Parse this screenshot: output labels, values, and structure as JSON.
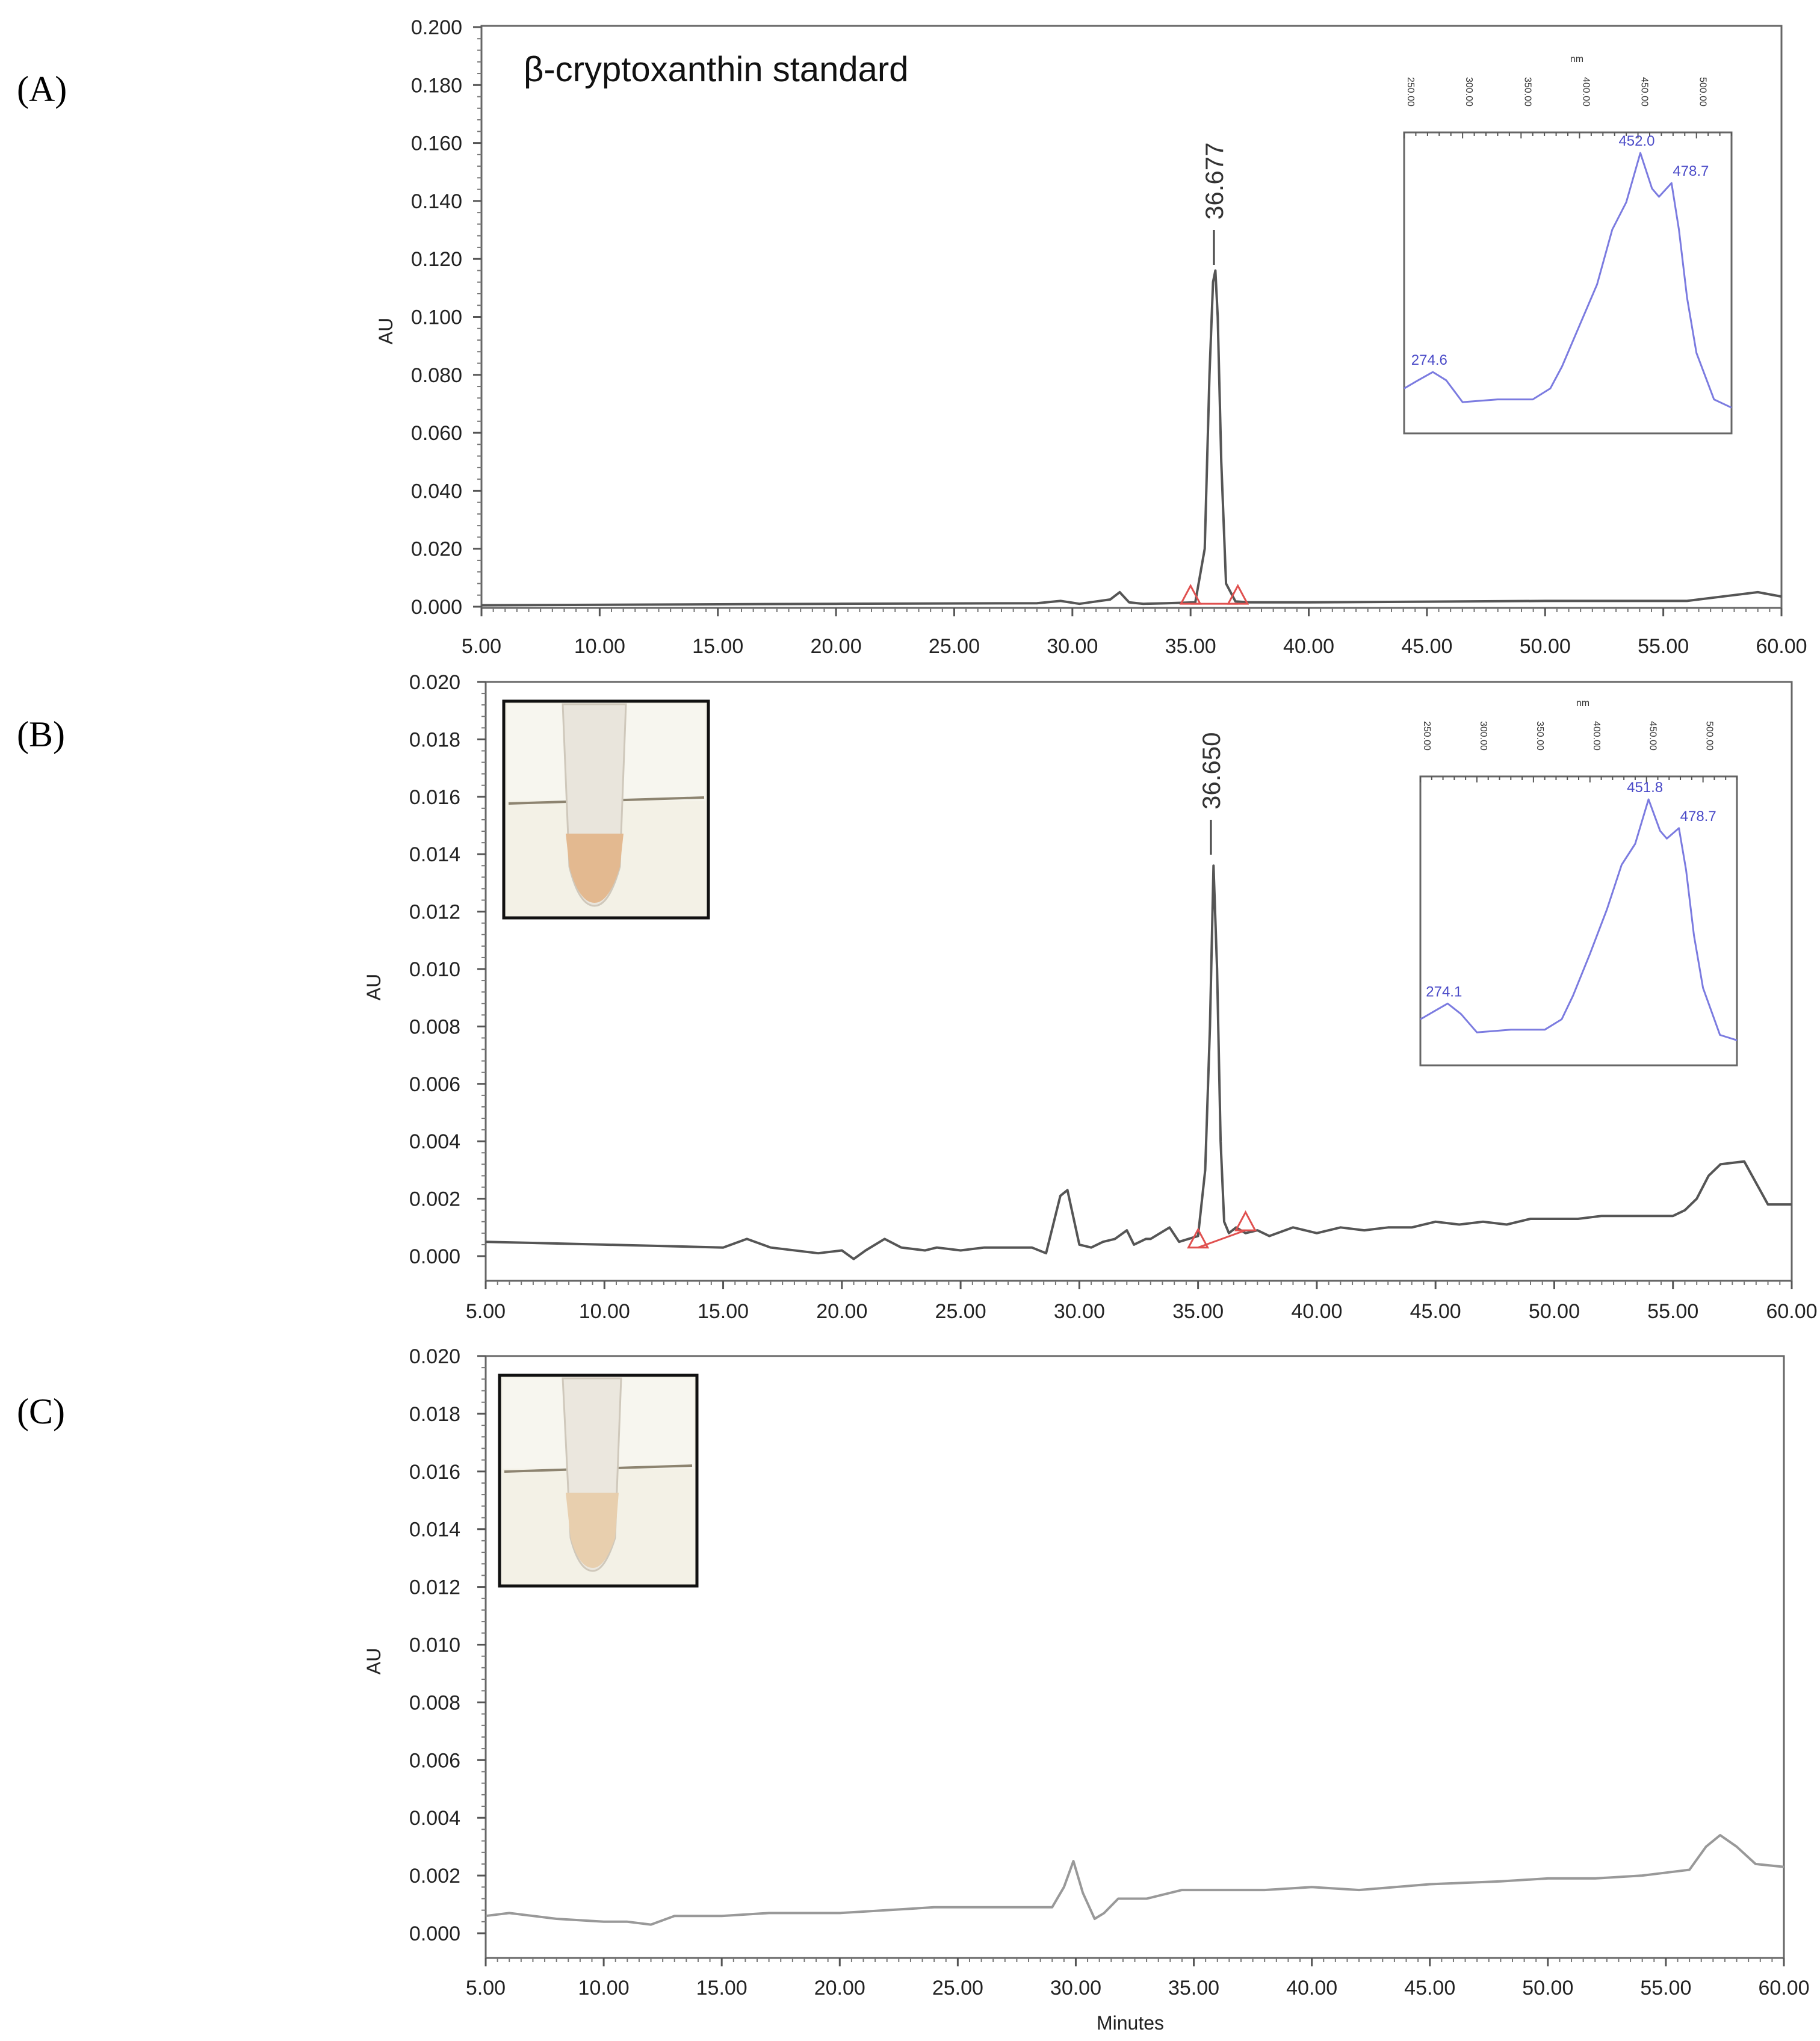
{
  "chart_data": [
    {
      "panel_label": "(A)",
      "type": "line",
      "title": "β-cryptoxanthin standard",
      "xlabel": "",
      "ylabel": "AU",
      "xlim": [
        5,
        60
      ],
      "ylim": [
        0,
        0.2
      ],
      "x_ticks": [
        "5.00",
        "10.00",
        "15.00",
        "20.00",
        "25.00",
        "30.00",
        "35.00",
        "40.00",
        "45.00",
        "50.00",
        "55.00",
        "60.00"
      ],
      "y_ticks": [
        "0.000",
        "0.020",
        "0.040",
        "0.060",
        "0.080",
        "0.100",
        "0.120",
        "0.140",
        "0.160",
        "0.180",
        "0.200"
      ],
      "line_color": "#555555",
      "series": [
        {
          "x": [
            5.0,
            20.0,
            28.5,
            29.5,
            30.3,
            31.0,
            31.6,
            32.0,
            32.4,
            33.0,
            34.0,
            35.2,
            35.6,
            35.8,
            35.95,
            36.05,
            36.15,
            36.3,
            36.5,
            36.9,
            37.5,
            40.0,
            50.0,
            56.0,
            58.0,
            59.0,
            60.0
          ],
          "y": [
            0.0005,
            0.001,
            0.0012,
            0.002,
            0.001,
            0.0018,
            0.0025,
            0.005,
            0.0015,
            0.001,
            0.0012,
            0.0015,
            0.02,
            0.08,
            0.112,
            0.116,
            0.1,
            0.05,
            0.008,
            0.0018,
            0.0015,
            0.0015,
            0.002,
            0.002,
            0.004,
            0.005,
            0.0035
          ]
        }
      ],
      "peak_label": {
        "text": "36.677",
        "x": 36.0,
        "y": 0.116
      },
      "integration_marks": [
        {
          "x": 35.0,
          "y": 0.001
        },
        {
          "x": 37.0,
          "y": 0.001
        }
      ],
      "integration_color": "#e0504f",
      "inset": {
        "unit": "nm",
        "x_ticks": [
          "250.00",
          "300.00",
          "350.00",
          "400.00",
          "450.00",
          "500.00"
        ],
        "xlim": [
          250,
          530
        ],
        "curve_color": "#7b7be0",
        "spectrum": {
          "x": [
            250,
            262,
            274.6,
            286,
            300,
            330,
            360,
            375,
            385,
            400,
            415,
            428,
            440,
            452,
            462,
            468,
            478.7,
            485,
            492,
            500,
            515,
            530
          ],
          "y": [
            0.12,
            0.15,
            0.18,
            0.15,
            0.07,
            0.08,
            0.08,
            0.12,
            0.2,
            0.35,
            0.5,
            0.7,
            0.8,
            0.98,
            0.85,
            0.82,
            0.87,
            0.7,
            0.45,
            0.25,
            0.08,
            0.05
          ]
        },
        "peak_labels": [
          {
            "text": "274.6",
            "x": 274.6
          },
          {
            "text": "452.0",
            "x": 452.0
          },
          {
            "text": "478.7",
            "x": 478.7
          }
        ]
      }
    },
    {
      "panel_label": "(B)",
      "type": "line",
      "title": "",
      "xlabel": "",
      "ylabel": "AU",
      "xlim": [
        5,
        60
      ],
      "ylim": [
        0,
        0.02
      ],
      "x_ticks": [
        "5.00",
        "10.00",
        "15.00",
        "20.00",
        "25.00",
        "30.00",
        "35.00",
        "40.00",
        "45.00",
        "50.00",
        "55.00",
        "60.00"
      ],
      "y_ticks": [
        "0.000",
        "0.002",
        "0.004",
        "0.006",
        "0.008",
        "0.010",
        "0.012",
        "0.014",
        "0.016",
        "0.018",
        "0.020"
      ],
      "line_color": "#555555",
      "series": [
        {
          "x": [
            5.0,
            10.0,
            15.0,
            16.0,
            17.0,
            19.0,
            20.0,
            20.5,
            21.0,
            21.8,
            22.5,
            23.5,
            24.0,
            25.0,
            26.0,
            28.0,
            28.6,
            29.2,
            29.5,
            30.0,
            30.5,
            31.0,
            31.5,
            32.0,
            32.3,
            32.8,
            33.0,
            33.8,
            34.2,
            35.0,
            35.3,
            35.5,
            35.65,
            35.8,
            35.95,
            36.1,
            36.3,
            36.6,
            37.0,
            37.5,
            38.0,
            39.0,
            40.0,
            41.0,
            42.0,
            43.0,
            44.0,
            45.0,
            46.0,
            47.0,
            48.0,
            49.0,
            50.0,
            51.0,
            52.0,
            53.0,
            54.0,
            55.0,
            55.5,
            56.0,
            56.5,
            57.0,
            58.0,
            59.0,
            60.0
          ],
          "y": [
            0.0005,
            0.0004,
            0.0003,
            0.0006,
            0.0003,
            0.0001,
            0.0002,
            -0.0001,
            0.0002,
            0.0006,
            0.0003,
            0.0002,
            0.0003,
            0.0002,
            0.0003,
            0.0003,
            0.0001,
            0.0021,
            0.0023,
            0.0004,
            0.0003,
            0.0005,
            0.0006,
            0.0009,
            0.0004,
            0.0006,
            0.0006,
            0.001,
            0.0005,
            0.0007,
            0.003,
            0.008,
            0.0136,
            0.01,
            0.004,
            0.0012,
            0.0008,
            0.001,
            0.0008,
            0.0009,
            0.0007,
            0.001,
            0.0008,
            0.001,
            0.0009,
            0.001,
            0.001,
            0.0012,
            0.0011,
            0.0012,
            0.0011,
            0.0013,
            0.0013,
            0.0013,
            0.0014,
            0.0014,
            0.0014,
            0.0014,
            0.0016,
            0.002,
            0.0028,
            0.0032,
            0.0033,
            0.0018,
            0.0018
          ]
        }
      ],
      "peak_label": {
        "text": "36.650",
        "x": 35.7,
        "y": 0.0136
      },
      "integration_marks": [
        {
          "x": 35.0,
          "y": 0.0003
        },
        {
          "x": 37.0,
          "y": 0.0009
        }
      ],
      "integration_color": "#e0504f",
      "inset": {
        "unit": "nm",
        "x_ticks": [
          "250.00",
          "300.00",
          "350.00",
          "400.00",
          "450.00",
          "500.00"
        ],
        "xlim": [
          250,
          530
        ],
        "curve_color": "#7b7be0",
        "spectrum": {
          "x": [
            250,
            262,
            274.1,
            286,
            300,
            330,
            360,
            375,
            385,
            400,
            415,
            428,
            440,
            451.8,
            462,
            468,
            478.7,
            485,
            492,
            500,
            515,
            530
          ],
          "y": [
            0.13,
            0.16,
            0.19,
            0.15,
            0.08,
            0.09,
            0.09,
            0.13,
            0.22,
            0.38,
            0.55,
            0.72,
            0.8,
            0.97,
            0.85,
            0.82,
            0.86,
            0.7,
            0.45,
            0.25,
            0.07,
            0.05
          ]
        },
        "peak_labels": [
          {
            "text": "274.1",
            "x": 274.1
          },
          {
            "text": "451.8",
            "x": 451.8
          },
          {
            "text": "478.7",
            "x": 478.7
          }
        ]
      }
    },
    {
      "panel_label": "(C)",
      "type": "line",
      "title": "",
      "xlabel": "Minutes",
      "ylabel": "AU",
      "xlim": [
        5,
        60
      ],
      "ylim": [
        0,
        0.02
      ],
      "x_ticks": [
        "5.00",
        "10.00",
        "15.00",
        "20.00",
        "25.00",
        "30.00",
        "35.00",
        "40.00",
        "45.00",
        "50.00",
        "55.00",
        "60.00"
      ],
      "y_ticks": [
        "0.000",
        "0.002",
        "0.004",
        "0.006",
        "0.008",
        "0.010",
        "0.012",
        "0.014",
        "0.016",
        "0.018",
        "0.020"
      ],
      "line_color": "#999999",
      "series": [
        {
          "x": [
            5.0,
            6.0,
            8.0,
            10.0,
            11.0,
            12.0,
            13.0,
            15.0,
            17.0,
            20.0,
            22.0,
            24.0,
            26.0,
            28.0,
            29.0,
            29.5,
            29.9,
            30.3,
            30.8,
            31.2,
            31.8,
            33.0,
            34.5,
            36.0,
            38.0,
            40.0,
            42.0,
            45.0,
            48.0,
            50.0,
            52.0,
            54.0,
            55.0,
            56.0,
            56.7,
            57.3,
            58.0,
            58.8,
            60.0
          ],
          "y": [
            0.0006,
            0.0007,
            0.0005,
            0.0004,
            0.0004,
            0.0003,
            0.0006,
            0.0006,
            0.0007,
            0.0007,
            0.0008,
            0.0009,
            0.0009,
            0.0009,
            0.0009,
            0.0016,
            0.0025,
            0.0014,
            0.0005,
            0.0007,
            0.0012,
            0.0012,
            0.0015,
            0.0015,
            0.0015,
            0.0016,
            0.0015,
            0.0017,
            0.0018,
            0.0019,
            0.0019,
            0.002,
            0.0021,
            0.0022,
            0.003,
            0.0034,
            0.003,
            0.0024,
            0.0023
          ]
        }
      ]
    }
  ]
}
